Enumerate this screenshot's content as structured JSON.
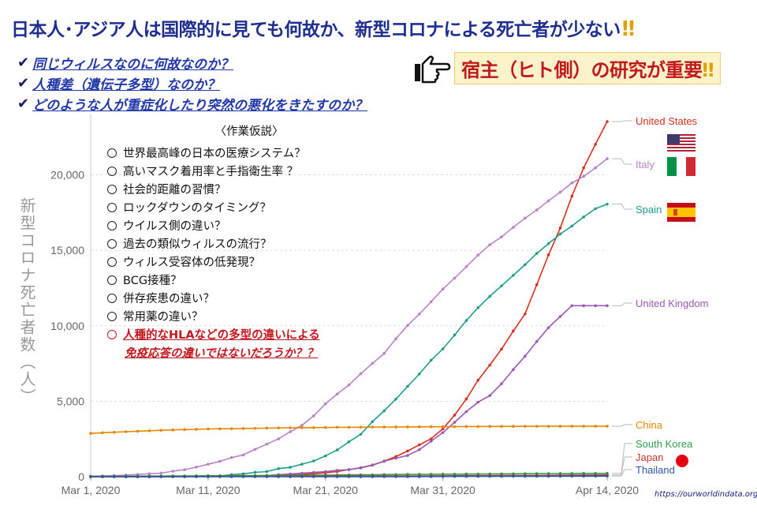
{
  "title": "日本人･アジア人は国際的に見ても何故か、新型コロナによる死亡者が少ない",
  "title_bang": "‼",
  "questions": [
    "同じウィルスなのに何故なのか？",
    "人種差（遺伝子多型）なのか？",
    "どのような人が重症化したり突然の悪化をきたすのか？"
  ],
  "check_icon": "check-icon",
  "callout": "宿主（ヒト側）の研究が重要",
  "callout_bang": "‼",
  "hypothesis": {
    "title": "〈作業仮説〉",
    "items": [
      "世界最高峰の日本の医療システム？",
      "高いマスク着用率と手指衛生率 ？",
      "社会的距離の習慣？",
      "ロックダウンのタイミング？",
      "ウイルス側の違い？",
      "過去の類似ウィルスの流行？",
      "ウィルス受容体の低発現？",
      "BCG接種？",
      "併存疾患の違い？",
      "常用薬の違い？"
    ],
    "highlight_line1": "人種的なHLAなどの多型の違いによる",
    "highlight_line2": "免疫応答の違いではないだろうか？？"
  },
  "source": "https://ourworldindata.org/",
  "chart_data": {
    "type": "line",
    "ylabel": "新型コロナ死亡者数（人）",
    "ylim": [
      0,
      24000
    ],
    "yticks": [
      0,
      5000,
      10000,
      15000,
      20000
    ],
    "ytick_labels": [
      "0",
      "5,000",
      "10,000",
      "15,000",
      "20,000"
    ],
    "xticks": [
      "Mar 1, 2020",
      "Mar 11, 2020",
      "Mar 21, 2020",
      "Mar 31, 2020",
      "Apr 14, 2020"
    ],
    "xtick_days": [
      0,
      10,
      20,
      30,
      44
    ],
    "x_start_label": "Mar 1, 2020",
    "series": [
      {
        "name": "United States",
        "color": "#d7301f",
        "values": [
          1,
          2,
          6,
          9,
          11,
          12,
          14,
          17,
          21,
          22,
          28,
          36,
          40,
          47,
          54,
          63,
          85,
          108,
          150,
          201,
          255,
          340,
          471,
          590,
          776,
          1037,
          1334,
          1701,
          2112,
          2509,
          3170,
          4076,
          5151,
          6394,
          7392,
          8452,
          9648,
          10783,
          12722,
          14695,
          16478,
          18586,
          20463,
          22020,
          23529
        ]
      },
      {
        "name": "Italy",
        "color": "#b983c9",
        "values": [
          34,
          52,
          79,
          107,
          148,
          197,
          233,
          366,
          463,
          631,
          827,
          1016,
          1266,
          1441,
          1809,
          2158,
          2503,
          2978,
          3405,
          4032,
          4825,
          5476,
          6077,
          6820,
          7503,
          8165,
          9134,
          10023,
          10779,
          11591,
          12428,
          13155,
          13915,
          14681,
          15362,
          15887,
          16523,
          17127,
          17669,
          18279,
          18849,
          19468,
          19899,
          20465,
          21067
        ]
      },
      {
        "name": "Spain",
        "color": "#1f9e89",
        "values": [
          0,
          0,
          1,
          2,
          3,
          5,
          10,
          17,
          28,
          35,
          54,
          55,
          133,
          195,
          289,
          342,
          533,
          623,
          830,
          1043,
          1375,
          1772,
          2311,
          2808,
          3647,
          4365,
          5138,
          5982,
          6803,
          7716,
          8464,
          9387,
          10348,
          11198,
          11947,
          12641,
          13341,
          14045,
          14792,
          15447,
          16081,
          16606,
          17209,
          17756,
          18056
        ]
      },
      {
        "name": "United Kingdom",
        "color": "#9b59b6",
        "values": [
          0,
          0,
          1,
          2,
          2,
          3,
          4,
          6,
          8,
          8,
          8,
          10,
          21,
          56,
          56,
          72,
          138,
          178,
          234,
          282,
          335,
          422,
          465,
          578,
          759,
          1019,
          1228,
          1408,
          1789,
          2352,
          2921,
          3605,
          4313,
          4934,
          5373,
          6159,
          7097,
          7978,
          8958,
          9875,
          10612,
          11329,
          11329,
          11329,
          11329
        ]
      },
      {
        "name": "China",
        "color": "#e58a00",
        "values": [
          2870,
          2912,
          2945,
          2981,
          3013,
          3045,
          3073,
          3100,
          3123,
          3139,
          3161,
          3172,
          3180,
          3194,
          3203,
          3217,
          3230,
          3241,
          3249,
          3253,
          3259,
          3274,
          3274,
          3281,
          3285,
          3291,
          3296,
          3299,
          3304,
          3308,
          3309,
          3316,
          3322,
          3326,
          3330,
          3331,
          3335,
          3337,
          3339,
          3340,
          3341,
          3342,
          3343,
          3343,
          3343
        ]
      },
      {
        "name": "South Korea",
        "color": "#2e9e4a",
        "values": [
          17,
          22,
          28,
          32,
          35,
          42,
          44,
          50,
          51,
          54,
          60,
          66,
          67,
          72,
          75,
          81,
          84,
          91,
          94,
          102,
          104,
          111,
          120,
          126,
          131,
          139,
          144,
          152,
          158,
          162,
          165,
          169,
          174,
          177,
          183,
          186,
          192,
          200,
          204,
          208,
          211,
          214,
          217,
          222,
          225
        ]
      },
      {
        "name": "Japan",
        "color": "#c0392b",
        "values": [
          6,
          6,
          6,
          6,
          6,
          6,
          6,
          7,
          9,
          12,
          15,
          19,
          22,
          22,
          22,
          24,
          28,
          29,
          33,
          35,
          36,
          41,
          42,
          43,
          45,
          46,
          49,
          52,
          54,
          56,
          57,
          63,
          69,
          70,
          73,
          77,
          80,
          84,
          85,
          88,
          94,
          98,
          104,
          108,
          119
        ]
      },
      {
        "name": "Thailand",
        "color": "#2c5aa0",
        "values": [
          1,
          1,
          1,
          1,
          1,
          1,
          1,
          1,
          1,
          1,
          1,
          1,
          1,
          1,
          1,
          1,
          1,
          1,
          1,
          1,
          1,
          1,
          1,
          3,
          4,
          5,
          6,
          7,
          9,
          12,
          15,
          19,
          20,
          23,
          26,
          27,
          30,
          32,
          33,
          35,
          38,
          40,
          41,
          43,
          47
        ]
      }
    ],
    "flags": {
      "united_states": "us-flag",
      "italy": "italy-flag",
      "spain": "spain-flag",
      "japan": "japan-flag"
    }
  }
}
